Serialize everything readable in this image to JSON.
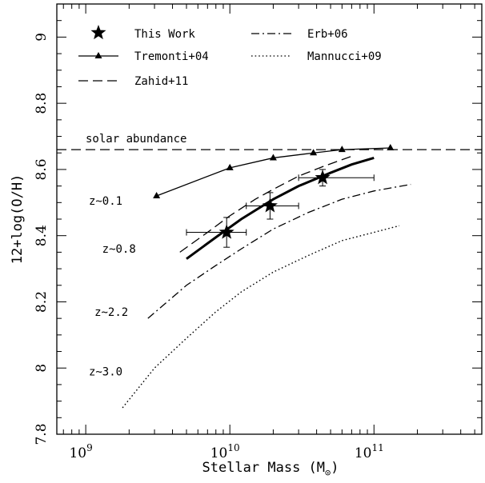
{
  "chart_data": {
    "type": "line",
    "xlabel": "Stellar Mass (M",
    "xlabel_sub": "⊙",
    "xlabel_close": ")",
    "ylabel": "12+log(O/H)",
    "xscale": "log",
    "xlim": [
      630000000.0,
      560000000000.0
    ],
    "ylim": [
      7.8,
      9.1
    ],
    "x_ticks": [
      {
        "value": 1000000000.0,
        "base": "10",
        "exp": "9"
      },
      {
        "value": 10000000000.0,
        "base": "10",
        "exp": "10"
      },
      {
        "value": 100000000000.0,
        "base": "10",
        "exp": "11"
      }
    ],
    "y_ticks": [
      {
        "value": 7.8,
        "label": "7.8"
      },
      {
        "value": 8.0,
        "label": "8"
      },
      {
        "value": 8.2,
        "label": "8.2"
      },
      {
        "value": 8.4,
        "label": "8.4"
      },
      {
        "value": 8.6,
        "label": "8.6"
      },
      {
        "value": 8.8,
        "label": "8.8"
      },
      {
        "value": 9.0,
        "label": "9"
      }
    ],
    "solar_abundance": {
      "value": 8.66,
      "label": "solar abundance"
    },
    "series": [
      {
        "name": "This Work",
        "style": "star",
        "points": [
          {
            "x": 9500000000.0,
            "y": 8.41,
            "xerr": [
              5000000000.0,
              13000000000.0
            ],
            "yerr": 0.045
          },
          {
            "x": 19000000000.0,
            "y": 8.49,
            "xerr": [
              13000000000.0,
              30000000000.0
            ],
            "yerr": 0.04
          },
          {
            "x": 44000000000.0,
            "y": 8.575,
            "xerr": [
              30000000000.0,
              100000000000.0
            ],
            "yerr": 0.025
          }
        ],
        "fit": [
          [
            5000000000.0,
            8.33
          ],
          [
            8000000000.0,
            8.395
          ],
          [
            12000000000.0,
            8.45
          ],
          [
            20000000000.0,
            8.51
          ],
          [
            30000000000.0,
            8.55
          ],
          [
            50000000000.0,
            8.59
          ],
          [
            70000000000.0,
            8.615
          ],
          [
            100000000000.0,
            8.635
          ]
        ]
      },
      {
        "name": "Tremonti+04",
        "style": "solid-triangle",
        "points": [
          [
            3100000000.0,
            8.52
          ],
          [
            10000000000.0,
            8.605
          ],
          [
            20000000000.0,
            8.635
          ],
          [
            38000000000.0,
            8.65
          ],
          [
            60000000000.0,
            8.66
          ],
          [
            130000000000.0,
            8.665
          ]
        ]
      },
      {
        "name": "Zahid+11",
        "style": "dashed",
        "points": [
          [
            4500000000.0,
            8.35
          ],
          [
            7000000000.0,
            8.41
          ],
          [
            10000000000.0,
            8.46
          ],
          [
            15000000000.0,
            8.51
          ],
          [
            20000000000.0,
            8.54
          ],
          [
            30000000000.0,
            8.58
          ],
          [
            45000000000.0,
            8.61
          ],
          [
            70000000000.0,
            8.64
          ]
        ]
      },
      {
        "name": "Erb+06",
        "style": "dashdot",
        "points": [
          [
            2700000000.0,
            8.15
          ],
          [
            5000000000.0,
            8.25
          ],
          [
            8000000000.0,
            8.31
          ],
          [
            12000000000.0,
            8.36
          ],
          [
            20000000000.0,
            8.42
          ],
          [
            35000000000.0,
            8.47
          ],
          [
            60000000000.0,
            8.51
          ],
          [
            100000000000.0,
            8.535
          ],
          [
            180000000000.0,
            8.555
          ]
        ]
      },
      {
        "name": "Mannucci+09",
        "style": "dotted",
        "points": [
          [
            1800000000.0,
            7.88
          ],
          [
            3000000000.0,
            8.0
          ],
          [
            5000000000.0,
            8.09
          ],
          [
            8000000000.0,
            8.17
          ],
          [
            12000000000.0,
            8.23
          ],
          [
            20000000000.0,
            8.29
          ],
          [
            35000000000.0,
            8.34
          ],
          [
            60000000000.0,
            8.385
          ],
          [
            100000000000.0,
            8.41
          ],
          [
            150000000000.0,
            8.43
          ]
        ]
      }
    ],
    "annotations": [
      {
        "text": "z~0.1",
        "x": 1050000000.0,
        "y": 8.505
      },
      {
        "text": "z~0.8",
        "x": 1300000000.0,
        "y": 8.36
      },
      {
        "text": "z~2.2",
        "x": 1150000000.0,
        "y": 8.17
      },
      {
        "text": "z~3.0",
        "x": 1050000000.0,
        "y": 7.99
      }
    ],
    "legend": [
      {
        "label": "This Work",
        "style": "star"
      },
      {
        "label": "Erb+06",
        "style": "dashdot"
      },
      {
        "label": "Tremonti+04",
        "style": "solid-triangle"
      },
      {
        "label": "Mannucci+09",
        "style": "dotted"
      },
      {
        "label": "Zahid+11",
        "style": "dashed"
      }
    ]
  }
}
